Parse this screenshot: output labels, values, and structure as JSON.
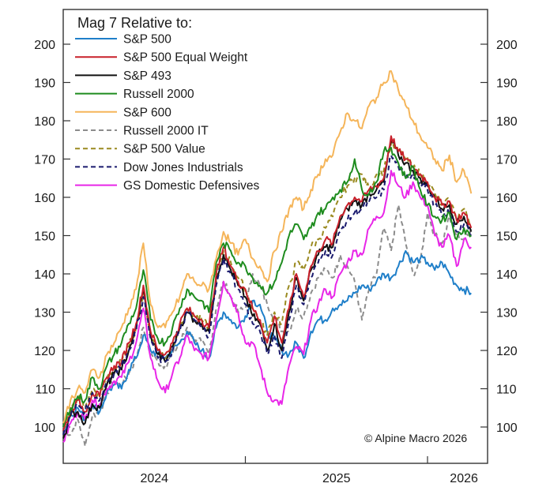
{
  "chart_data": {
    "type": "line",
    "title": "",
    "legend_title": "Mag 7 Relative to:",
    "legend_placement": "top-left",
    "xlabel": "",
    "ylabel": "",
    "ylim": [
      92,
      209
    ],
    "xlim": [
      2024.0,
      2026.33
    ],
    "y_ticks": [
      100,
      110,
      120,
      130,
      140,
      150,
      160,
      170,
      180,
      190,
      200
    ],
    "y_tick_labels": [
      "100",
      "110",
      "120",
      "130",
      "140",
      "150",
      "160",
      "170",
      "180",
      "190",
      "200"
    ],
    "x_ticks": [
      2025.0,
      2026.0
    ],
    "x_tick_labels": [
      {
        "label": "2024",
        "at": 2024.5
      },
      {
        "label": "2025",
        "at": 2025.5
      },
      {
        "label": "2026",
        "at": 2026.2
      }
    ],
    "grid": false,
    "annotation": "© Alpine Macro 2026",
    "x": [
      2024.0,
      2024.04,
      2024.08,
      2024.12,
      2024.16,
      2024.2,
      2024.24,
      2024.28,
      2024.32,
      2024.36,
      2024.4,
      2024.44,
      2024.48,
      2024.52,
      2024.56,
      2024.6,
      2024.64,
      2024.68,
      2024.72,
      2024.76,
      2024.8,
      2024.84,
      2024.88,
      2024.92,
      2024.96,
      2025.0,
      2025.04,
      2025.08,
      2025.12,
      2025.16,
      2025.2,
      2025.24,
      2025.28,
      2025.32,
      2025.36,
      2025.4,
      2025.44,
      2025.48,
      2025.52,
      2025.56,
      2025.6,
      2025.64,
      2025.68,
      2025.72,
      2025.76,
      2025.8,
      2025.84,
      2025.88,
      2025.92,
      2025.96,
      2026.0,
      2026.04,
      2026.08,
      2026.12,
      2026.16,
      2026.2,
      2026.24
    ],
    "series": [
      {
        "name": "S&P 500",
        "color": "#1f7fc9",
        "dash": "solid",
        "values": [
          98,
          103,
          105,
          102,
          106,
          104,
          109,
          111,
          110,
          115,
          118,
          124,
          120,
          119,
          118,
          120,
          122,
          125,
          122,
          120,
          118,
          126,
          130,
          128,
          126,
          129,
          133,
          132,
          125,
          123,
          120,
          119,
          122,
          118,
          125,
          128,
          128,
          131,
          132,
          133,
          135,
          137,
          136,
          138,
          140,
          139,
          142,
          146,
          143,
          144,
          143,
          141,
          143,
          140,
          137,
          136,
          135
        ]
      },
      {
        "name": "S&P 500 Equal Weight",
        "color": "#c8202a",
        "dash": "solid",
        "values": [
          99,
          104,
          107,
          104,
          109,
          108,
          113,
          116,
          117,
          122,
          127,
          137,
          125,
          120,
          119,
          122,
          127,
          131,
          129,
          128,
          126,
          140,
          147,
          142,
          138,
          136,
          131,
          128,
          122,
          129,
          122,
          131,
          140,
          134,
          142,
          146,
          149,
          148,
          155,
          158,
          160,
          159,
          162,
          163,
          165,
          176,
          172,
          170,
          168,
          166,
          164,
          160,
          158,
          159,
          154,
          156,
          152
        ]
      },
      {
        "name": "S&P 493",
        "color": "#111111",
        "dash": "solid",
        "values": [
          97,
          103,
          104,
          101,
          106,
          105,
          111,
          114,
          115,
          120,
          126,
          136,
          124,
          119,
          117,
          121,
          126,
          130,
          128,
          127,
          125,
          139,
          145,
          141,
          137,
          134,
          129,
          127,
          120,
          127,
          120,
          130,
          139,
          133,
          141,
          145,
          147,
          147,
          154,
          157,
          159,
          158,
          161,
          162,
          164,
          175,
          171,
          169,
          167,
          165,
          163,
          160,
          157,
          158,
          153,
          155,
          151
        ]
      },
      {
        "name": "Russell 2000",
        "color": "#1e8c1e",
        "dash": "solid",
        "values": [
          100,
          105,
          108,
          107,
          113,
          110,
          116,
          119,
          122,
          127,
          131,
          141,
          128,
          123,
          122,
          126,
          131,
          136,
          134,
          133,
          130,
          143,
          148,
          146,
          143,
          142,
          139,
          137,
          135,
          138,
          143,
          150,
          153,
          149,
          152,
          156,
          157,
          160,
          162,
          164,
          170,
          162,
          161,
          164,
          172,
          173,
          169,
          165,
          168,
          162,
          158,
          155,
          154,
          156,
          149,
          152,
          150
        ]
      },
      {
        "name": "S&P 600",
        "color": "#f5b55a",
        "dash": "solid",
        "values": [
          101,
          107,
          110,
          109,
          115,
          113,
          119,
          122,
          126,
          131,
          136,
          148,
          132,
          126,
          126,
          130,
          134,
          140,
          138,
          137,
          136,
          144,
          151,
          148,
          145,
          149,
          144,
          142,
          138,
          146,
          151,
          157,
          160,
          157,
          162,
          166,
          170,
          171,
          177,
          182,
          180,
          178,
          184,
          186,
          190,
          193,
          188,
          184,
          180,
          176,
          173,
          170,
          167,
          171,
          164,
          167,
          161
        ]
      },
      {
        "name": "Russell 2000 IT",
        "color": "#8c8c8c",
        "dash": "dashed",
        "values": [
          100,
          98,
          102,
          95,
          103,
          104,
          109,
          112,
          111,
          114,
          118,
          126,
          119,
          117,
          116,
          119,
          122,
          126,
          123,
          122,
          119,
          131,
          138,
          134,
          130,
          131,
          140,
          137,
          132,
          129,
          125,
          125,
          131,
          129,
          135,
          139,
          141,
          139,
          145,
          142,
          138,
          128,
          136,
          140,
          152,
          146,
          158,
          148,
          140,
          143,
          156,
          150,
          148,
          155,
          150,
          149,
          152
        ]
      },
      {
        "name": "S&P 500 Value",
        "color": "#9a8a20",
        "dash": "dashed",
        "values": [
          100,
          104,
          108,
          105,
          110,
          108,
          113,
          115,
          117,
          121,
          126,
          135,
          124,
          120,
          118,
          121,
          126,
          131,
          129,
          128,
          126,
          138,
          146,
          143,
          139,
          136,
          131,
          128,
          124,
          130,
          127,
          137,
          143,
          141,
          147,
          149,
          152,
          155,
          160,
          163,
          165,
          166,
          162,
          166,
          167,
          174,
          172,
          170,
          168,
          166,
          164,
          161,
          158,
          159,
          155,
          157,
          153
        ]
      },
      {
        "name": "Dow Jones Industrials",
        "color": "#1a1a6e",
        "dash": "dashed",
        "values": [
          98,
          103,
          106,
          104,
          109,
          107,
          112,
          114,
          116,
          120,
          125,
          134,
          123,
          118,
          117,
          120,
          125,
          130,
          128,
          126,
          124,
          137,
          144,
          140,
          136,
          132,
          127,
          125,
          119,
          124,
          118,
          128,
          137,
          132,
          139,
          143,
          146,
          145,
          151,
          154,
          156,
          157,
          159,
          160,
          162,
          171,
          168,
          165,
          166,
          164,
          162,
          158,
          155,
          156,
          151,
          153,
          150
        ]
      },
      {
        "name": "GS Domestic Defensives",
        "color": "#e826e8",
        "dash": "solid",
        "values": [
          96,
          101,
          104,
          102,
          107,
          106,
          110,
          112,
          113,
          117,
          122,
          131,
          118,
          112,
          109,
          114,
          118,
          124,
          120,
          119,
          118,
          128,
          138,
          134,
          130,
          122,
          122,
          116,
          109,
          107,
          106,
          116,
          121,
          119,
          128,
          132,
          136,
          134,
          140,
          143,
          146,
          145,
          152,
          155,
          156,
          167,
          163,
          160,
          164,
          160,
          158,
          150,
          147,
          150,
          142,
          149,
          147
        ]
      }
    ]
  }
}
